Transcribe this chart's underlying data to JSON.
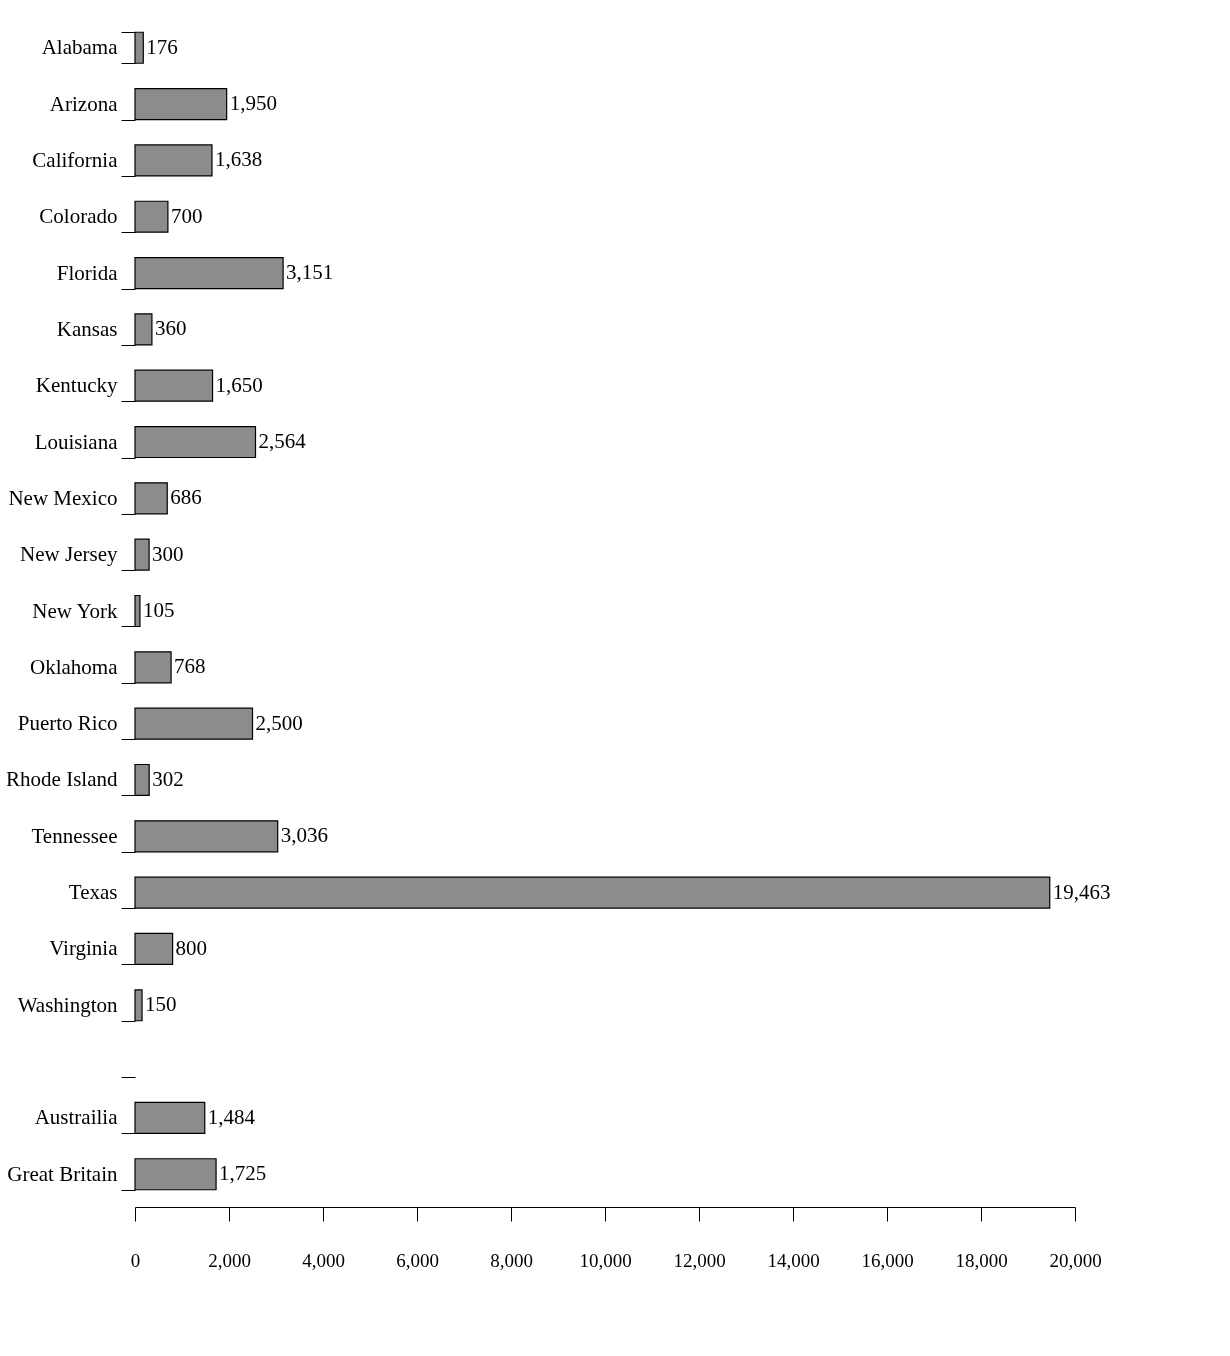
{
  "chart_data": {
    "type": "bar",
    "orientation": "horizontal",
    "categories": [
      "Alabama",
      "Arizona",
      "California",
      "Colorado",
      "Florida",
      "Kansas",
      "Kentucky",
      "Louisiana",
      "New Mexico",
      "New Jersey",
      "New York",
      "Oklahoma",
      "Puerto Rico",
      "Rhode Island",
      "Tennessee",
      "Texas",
      "Virginia",
      "Washington",
      null,
      "Austrailia",
      "Great Britain"
    ],
    "values": [
      176,
      1950,
      1638,
      700,
      3151,
      360,
      1650,
      2564,
      686,
      300,
      105,
      768,
      2500,
      302,
      3036,
      19463,
      800,
      150,
      null,
      1484,
      1725
    ],
    "value_labels": [
      "176",
      "1,950",
      "1,638",
      "700",
      "3,151",
      "360",
      "1,650",
      "2,564",
      "686",
      "300",
      "105",
      "768",
      "2,500",
      "302",
      "3,036",
      "19,463",
      "800",
      "150",
      null,
      "1,484",
      "1,725"
    ],
    "color": "#8c8c8c",
    "xlim": [
      0,
      20000
    ],
    "xticks": [
      {
        "value": 0,
        "label": "0"
      },
      {
        "value": 2000,
        "label": "2,000"
      },
      {
        "value": 4000,
        "label": "4,000"
      },
      {
        "value": 6000,
        "label": "6,000"
      },
      {
        "value": 8000,
        "label": "8,000"
      },
      {
        "value": 10000,
        "label": "10,000"
      },
      {
        "value": 12000,
        "label": "12,000"
      },
      {
        "value": 14000,
        "label": "14,000"
      },
      {
        "value": 16000,
        "label": "16,000"
      },
      {
        "value": 18000,
        "label": "18,000"
      },
      {
        "value": 20000,
        "label": "20,000"
      }
    ],
    "grid": false
  }
}
